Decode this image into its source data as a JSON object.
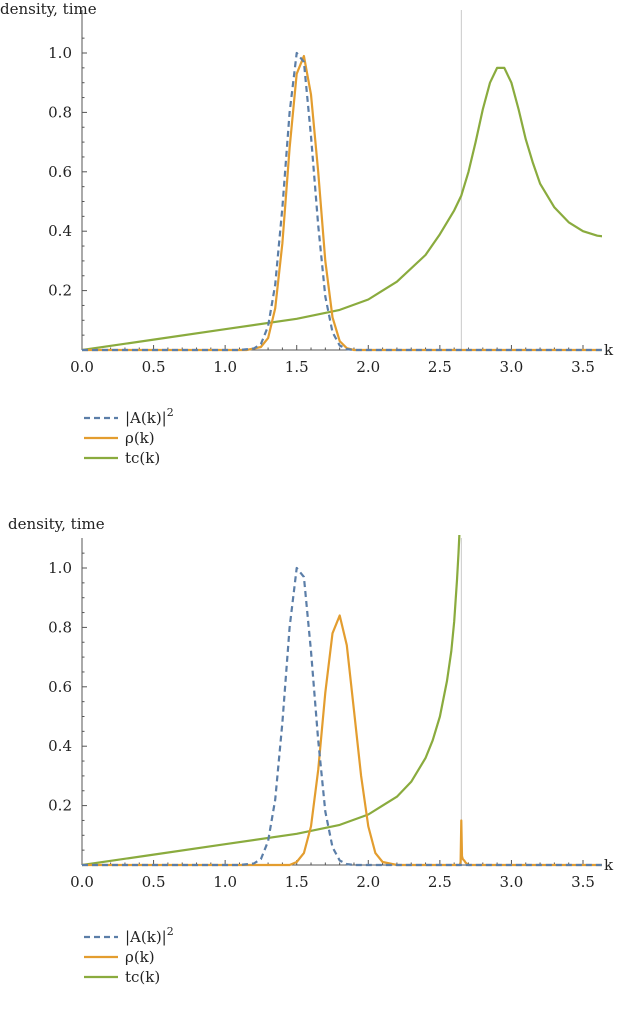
{
  "chart_data": [
    {
      "type": "line",
      "ylabel": "density, time",
      "xlabel": "k",
      "xlim": [
        0,
        3.7
      ],
      "ylim": [
        0,
        1.1
      ],
      "xticks": [
        "0.0",
        "0.5",
        "1.0",
        "1.5",
        "2.0",
        "2.5",
        "3.0",
        "3.5"
      ],
      "yticks": [
        "0.2",
        "0.4",
        "0.6",
        "0.8",
        "1.0"
      ],
      "vline_x": 2.65,
      "legend": "below",
      "series": [
        {
          "name": "|A(k)|",
          "superscript": "2",
          "style": "dashed",
          "color": "#5b7ea8",
          "x": [
            0.0,
            1.1,
            1.2,
            1.25,
            1.3,
            1.35,
            1.4,
            1.45,
            1.5,
            1.55,
            1.6,
            1.65,
            1.7,
            1.75,
            1.8,
            1.85,
            1.9,
            2.0,
            3.7
          ],
          "y": [
            0.0,
            0.0,
            0.005,
            0.02,
            0.08,
            0.22,
            0.48,
            0.8,
            1.0,
            0.97,
            0.72,
            0.42,
            0.18,
            0.06,
            0.015,
            0.003,
            0.0,
            0.0,
            0.0
          ]
        },
        {
          "name": "ρ(k)",
          "style": "solid",
          "color": "#e39d2f",
          "x": [
            0.0,
            1.15,
            1.25,
            1.3,
            1.35,
            1.4,
            1.45,
            1.5,
            1.55,
            1.6,
            1.65,
            1.7,
            1.75,
            1.8,
            1.85,
            1.9,
            2.0,
            3.7
          ],
          "y": [
            0.0,
            0.0,
            0.01,
            0.04,
            0.14,
            0.36,
            0.68,
            0.93,
            0.99,
            0.86,
            0.6,
            0.3,
            0.11,
            0.03,
            0.006,
            0.0,
            0.0,
            0.0
          ]
        },
        {
          "name": "tc(k)",
          "style": "solid",
          "color": "#8aab3e",
          "x": [
            0.0,
            0.5,
            1.0,
            1.5,
            1.8,
            2.0,
            2.2,
            2.4,
            2.5,
            2.6,
            2.65,
            2.7,
            2.75,
            2.8,
            2.85,
            2.9,
            2.95,
            3.0,
            3.05,
            3.1,
            3.15,
            3.2,
            3.3,
            3.4,
            3.5,
            3.6,
            3.68
          ],
          "y": [
            0.0,
            0.035,
            0.07,
            0.105,
            0.135,
            0.17,
            0.23,
            0.32,
            0.39,
            0.47,
            0.52,
            0.6,
            0.7,
            0.81,
            0.9,
            0.95,
            0.95,
            0.9,
            0.81,
            0.71,
            0.63,
            0.56,
            0.48,
            0.43,
            0.4,
            0.385,
            0.38
          ]
        }
      ]
    },
    {
      "type": "line",
      "ylabel": "density, time",
      "xlabel": "k",
      "xlim": [
        0,
        3.7
      ],
      "ylim": [
        0,
        1.1
      ],
      "xticks": [
        "0.0",
        "0.5",
        "1.0",
        "1.5",
        "2.0",
        "2.5",
        "3.0",
        "3.5"
      ],
      "yticks": [
        "0.2",
        "0.4",
        "0.6",
        "0.8",
        "1.0"
      ],
      "vline_x": 2.65,
      "legend": "below",
      "series": [
        {
          "name": "|A(k)|",
          "superscript": "2",
          "style": "dashed",
          "color": "#5b7ea8",
          "x": [
            0.0,
            1.1,
            1.2,
            1.25,
            1.3,
            1.35,
            1.4,
            1.45,
            1.5,
            1.55,
            1.6,
            1.65,
            1.7,
            1.75,
            1.8,
            1.85,
            1.9,
            2.0,
            3.7
          ],
          "y": [
            0.0,
            0.0,
            0.005,
            0.02,
            0.08,
            0.22,
            0.48,
            0.8,
            1.0,
            0.97,
            0.72,
            0.42,
            0.18,
            0.06,
            0.015,
            0.003,
            0.0,
            0.0,
            0.0
          ]
        },
        {
          "name": "ρ(k)",
          "style": "solid",
          "color": "#e39d2f",
          "x": [
            0.0,
            1.45,
            1.5,
            1.55,
            1.6,
            1.65,
            1.7,
            1.75,
            1.8,
            1.85,
            1.9,
            1.95,
            2.0,
            2.05,
            2.1,
            2.2,
            2.64,
            2.645,
            2.65,
            2.655,
            2.66,
            2.67,
            2.68,
            2.7,
            3.7
          ],
          "y": [
            0.0,
            0.0,
            0.01,
            0.04,
            0.13,
            0.32,
            0.58,
            0.78,
            0.84,
            0.74,
            0.52,
            0.3,
            0.13,
            0.04,
            0.01,
            0.0,
            0.0,
            0.01,
            0.15,
            0.03,
            0.02,
            0.015,
            0.008,
            0.0,
            0.0
          ]
        },
        {
          "name": "tc(k)",
          "style": "solid",
          "color": "#8aab3e",
          "x": [
            0.0,
            0.5,
            1.0,
            1.5,
            1.8,
            2.0,
            2.2,
            2.3,
            2.4,
            2.45,
            2.5,
            2.55,
            2.58,
            2.6,
            2.62,
            2.63,
            2.64
          ],
          "y": [
            0.0,
            0.035,
            0.07,
            0.105,
            0.135,
            0.17,
            0.23,
            0.28,
            0.36,
            0.42,
            0.5,
            0.62,
            0.72,
            0.82,
            0.96,
            1.05,
            1.15
          ]
        }
      ]
    }
  ]
}
